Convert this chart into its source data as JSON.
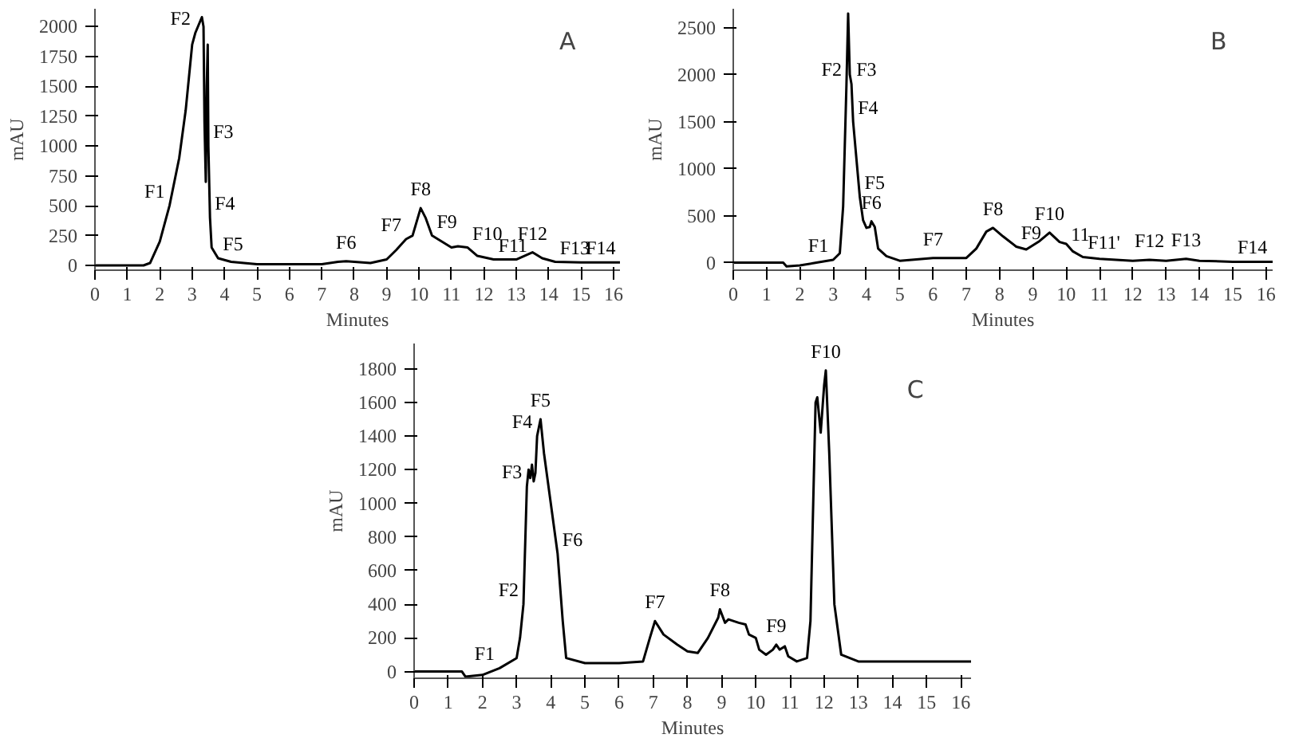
{
  "chart_data": [
    {
      "type": "line",
      "title": "A",
      "xlabel": "Minutes",
      "ylabel": "mAU",
      "xlim": [
        0,
        16.2
      ],
      "ylim": [
        -40,
        2150
      ],
      "xticks": [
        0,
        1,
        2,
        3,
        4,
        5,
        6,
        7,
        8,
        9,
        10,
        11,
        12,
        13,
        14,
        15,
        16
      ],
      "yticks": [
        0,
        250,
        500,
        750,
        1000,
        1250,
        1500,
        1750,
        2000
      ],
      "grid": false,
      "series": [
        {
          "color": "#000000",
          "x": [
            0,
            1.5,
            1.7,
            2,
            2.3,
            2.6,
            2.8,
            3.0,
            3.1,
            3.3,
            3.35,
            3.38,
            3.42,
            3.45,
            3.48,
            3.5,
            3.55,
            3.6,
            3.8,
            4.2,
            5,
            7,
            7.5,
            7.75,
            8,
            8.5,
            9,
            9.3,
            9.6,
            9.8,
            10.05,
            10.2,
            10.4,
            10.7,
            11,
            11.2,
            11.5,
            11.8,
            12.3,
            13,
            13.5,
            13.8,
            14.2,
            15,
            16,
            16.2
          ],
          "values": [
            0,
            0,
            20,
            200,
            500,
            900,
            1300,
            1850,
            1950,
            2080,
            2000,
            1200,
            700,
            1500,
            1850,
            1000,
            400,
            150,
            60,
            30,
            10,
            10,
            30,
            35,
            30,
            20,
            50,
            130,
            220,
            250,
            480,
            400,
            250,
            200,
            150,
            160,
            150,
            80,
            50,
            50,
            110,
            60,
            30,
            25,
            25,
            25
          ]
        }
      ],
      "annotations": [
        {
          "text": "F1",
          "x": 2.3,
          "y": 500
        },
        {
          "text": "F2",
          "x": 3.1,
          "y": 1950
        },
        {
          "text": "F3",
          "x": 3.5,
          "y": 1000
        },
        {
          "text": "F4",
          "x": 3.55,
          "y": 400
        },
        {
          "text": "F5",
          "x": 3.8,
          "y": 60
        },
        {
          "text": "F6",
          "x": 7.75,
          "y": 35
        },
        {
          "text": "F7",
          "x": 9.6,
          "y": 220
        },
        {
          "text": "F8",
          "x": 10.05,
          "y": 480
        },
        {
          "text": "F9",
          "x": 10.4,
          "y": 250
        },
        {
          "text": "F10",
          "x": 11.5,
          "y": 150
        },
        {
          "text": "F11",
          "x": 12.3,
          "y": 50
        },
        {
          "text": "F12",
          "x": 13.5,
          "y": 110
        },
        {
          "text": "F13",
          "x": 14.2,
          "y": 30
        },
        {
          "text": "F14",
          "x": 15,
          "y": 25
        }
      ]
    },
    {
      "type": "line",
      "title": "B",
      "xlabel": "Minutes",
      "ylabel": "mAU",
      "xlim": [
        0,
        16.2
      ],
      "ylim": [
        -80,
        2700
      ],
      "xticks": [
        0,
        1,
        2,
        3,
        4,
        5,
        6,
        7,
        8,
        9,
        10,
        11,
        12,
        13,
        14,
        15,
        16
      ],
      "yticks": [
        0,
        500,
        1000,
        1500,
        2000,
        2500
      ],
      "grid": false,
      "series": [
        {
          "color": "#000000",
          "x": [
            0,
            1.5,
            1.6,
            2,
            2.5,
            3,
            3.2,
            3.3,
            3.4,
            3.45,
            3.5,
            3.55,
            3.6,
            3.7,
            3.8,
            3.9,
            4.0,
            4.1,
            4.15,
            4.25,
            4.35,
            4.6,
            5,
            6,
            7,
            7.3,
            7.6,
            7.8,
            8.1,
            8.5,
            8.8,
            9.2,
            9.5,
            9.8,
            10.0,
            10.2,
            10.5,
            11,
            12,
            12.5,
            13,
            13.6,
            14,
            15,
            16,
            16.2
          ],
          "values": [
            0,
            0,
            -40,
            -30,
            0,
            30,
            100,
            600,
            1900,
            2650,
            2000,
            1900,
            1500,
            1100,
            700,
            450,
            370,
            380,
            440,
            380,
            150,
            70,
            20,
            50,
            50,
            150,
            330,
            370,
            280,
            170,
            140,
            230,
            320,
            220,
            200,
            120,
            60,
            40,
            20,
            30,
            20,
            40,
            20,
            10,
            10,
            10
          ]
        }
      ],
      "annotations": [
        {
          "text": "F1",
          "x": 3,
          "y": 30
        },
        {
          "text": "F2",
          "x": 3.4,
          "y": 1900
        },
        {
          "text": "F3",
          "x": 3.55,
          "y": 1900
        },
        {
          "text": "F4",
          "x": 3.6,
          "y": 1500
        },
        {
          "text": "F5",
          "x": 3.8,
          "y": 700
        },
        {
          "text": "F6",
          "x": 4.15,
          "y": 440
        },
        {
          "text": "F7",
          "x": 6,
          "y": 50
        },
        {
          "text": "F8",
          "x": 7.8,
          "y": 370
        },
        {
          "text": "F9",
          "x": 8.5,
          "y": 170
        },
        {
          "text": "F10",
          "x": 9.5,
          "y": 320
        },
        {
          "text": "11",
          "x": 10.0,
          "y": 200
        },
        {
          "text": "F11'",
          "x": 10.5,
          "y": 60
        },
        {
          "text": "F12",
          "x": 12.5,
          "y": 30
        },
        {
          "text": "F13",
          "x": 13.6,
          "y": 40
        },
        {
          "text": "F14",
          "x": 15,
          "y": 10
        }
      ]
    },
    {
      "type": "line",
      "title": "C",
      "xlabel": "Minutes",
      "ylabel": "mAU",
      "xlim": [
        0,
        16.3
      ],
      "ylim": [
        -40,
        1950
      ],
      "xticks": [
        0,
        1,
        2,
        3,
        4,
        5,
        6,
        7,
        8,
        9,
        10,
        11,
        12,
        13,
        14,
        15,
        16
      ],
      "yticks": [
        0,
        200,
        400,
        600,
        800,
        1000,
        1200,
        1400,
        1600,
        1800
      ],
      "grid": false,
      "series": [
        {
          "color": "#000000",
          "x": [
            0,
            1.4,
            1.5,
            2,
            2.5,
            3,
            3.1,
            3.2,
            3.3,
            3.35,
            3.4,
            3.45,
            3.5,
            3.55,
            3.6,
            3.7,
            3.8,
            4.0,
            4.2,
            4.35,
            4.45,
            5,
            6,
            6.7,
            6.9,
            7.05,
            7.3,
            7.7,
            8,
            8.3,
            8.6,
            8.9,
            8.95,
            9.1,
            9.2,
            9.5,
            9.7,
            9.8,
            10.0,
            10.1,
            10.3,
            10.5,
            10.6,
            10.7,
            10.85,
            10.95,
            11.2,
            11.5,
            11.6,
            11.75,
            11.8,
            11.9,
            12.0,
            12.05,
            12.15,
            12.3,
            12.5,
            13,
            16.3
          ],
          "values": [
            0,
            0,
            -30,
            -20,
            20,
            80,
            200,
            400,
            1100,
            1200,
            1150,
            1230,
            1130,
            1180,
            1400,
            1500,
            1300,
            1000,
            700,
            300,
            80,
            50,
            50,
            60,
            200,
            300,
            220,
            160,
            120,
            110,
            200,
            320,
            370,
            290,
            310,
            290,
            280,
            220,
            200,
            130,
            100,
            130,
            160,
            130,
            150,
            90,
            60,
            80,
            300,
            1600,
            1630,
            1420,
            1700,
            1790,
            1300,
            400,
            100,
            60,
            60
          ]
        }
      ],
      "annotations": [
        {
          "text": "F1",
          "x": 2.5,
          "y": 20
        },
        {
          "text": "F2",
          "x": 3.2,
          "y": 400
        },
        {
          "text": "F3",
          "x": 3.3,
          "y": 1100
        },
        {
          "text": "F4",
          "x": 3.6,
          "y": 1400
        },
        {
          "text": "F5",
          "x": 3.7,
          "y": 1500
        },
        {
          "text": "F6",
          "x": 4.2,
          "y": 700
        },
        {
          "text": "F7",
          "x": 7.05,
          "y": 300
        },
        {
          "text": "F8",
          "x": 8.95,
          "y": 370
        },
        {
          "text": "F9",
          "x": 10.6,
          "y": 160
        },
        {
          "text": "F10",
          "x": 12.05,
          "y": 1790
        }
      ]
    }
  ]
}
